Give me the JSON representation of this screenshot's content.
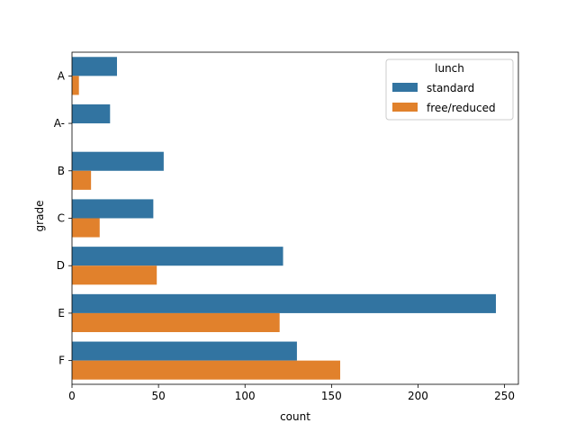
{
  "chart_data": {
    "type": "bar",
    "orientation": "horizontal",
    "title": "",
    "xlabel": "count",
    "ylabel": "grade",
    "categories": [
      "A",
      "A-",
      "B",
      "C",
      "D",
      "E",
      "F"
    ],
    "xlim": [
      0,
      258
    ],
    "xticks": [
      0,
      50,
      100,
      150,
      200,
      250
    ],
    "grid": false,
    "legend": {
      "title": "lunch",
      "placement": "top-right"
    },
    "series": [
      {
        "name": "standard",
        "color": "#3274a1",
        "values": [
          26,
          22,
          53,
          47,
          122,
          245,
          130
        ]
      },
      {
        "name": "free/reduced",
        "color": "#e1812c",
        "values": [
          4,
          0,
          11,
          16,
          49,
          120,
          155
        ]
      }
    ]
  }
}
